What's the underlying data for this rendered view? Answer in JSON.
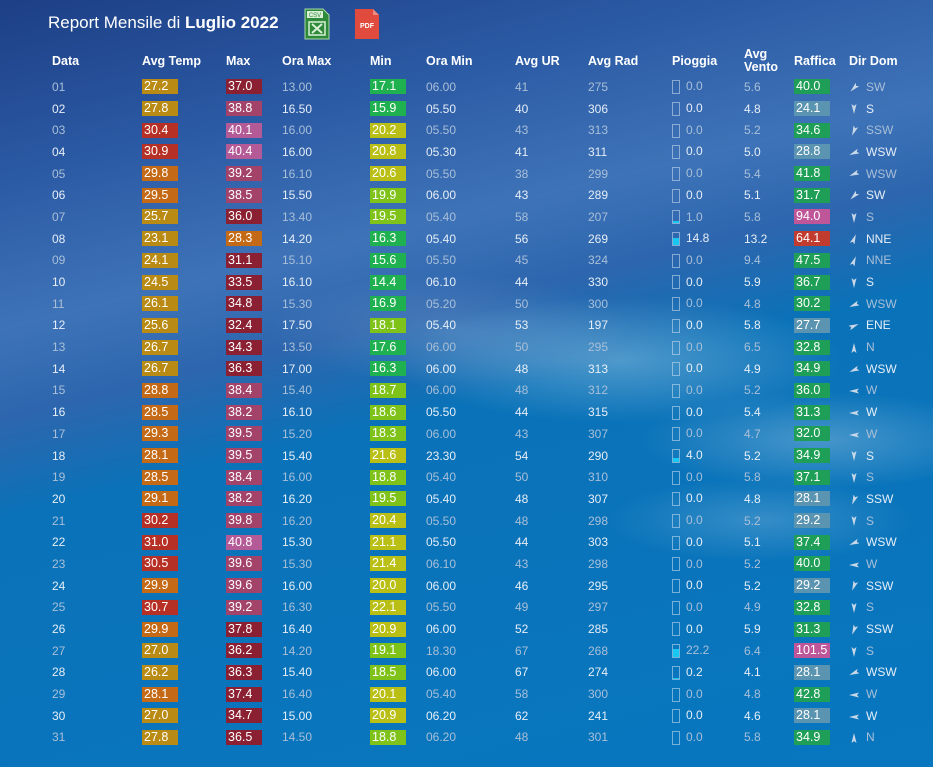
{
  "title": {
    "prefix": "Report Mensile di",
    "month": "Luglio 2022"
  },
  "buttons": {
    "csv": "CSV",
    "pdf": "PDF"
  },
  "headers": {
    "data": "Data",
    "avg_temp": "Avg Temp",
    "max": "Max",
    "ora_max": "Ora Max",
    "min": "Min",
    "ora_min": "Ora Min",
    "avg_ur": "Avg UR",
    "avg_rad": "Avg Rad",
    "pioggia": "Pioggia",
    "avg_vento_1": "Avg",
    "avg_vento_2": "Vento",
    "raffica": "Raffica",
    "dir_dom": "Dir Dom"
  },
  "colors": {
    "temp_gold": "#b98a14",
    "temp_orange": "#c46a16",
    "temp_red": "#b63025",
    "max_dark": "#8b2032",
    "max_mauve": "#a3436a",
    "max_pink": "#b45a96",
    "min_green": "#1fb150",
    "min_lime": "#7fc219",
    "min_yellow": "#b9bf15",
    "gust_green": "#1e9e56",
    "gust_teal": "#5a94b0",
    "gust_pink": "#c0569a",
    "gust_red": "#c23b2f",
    "rain_fill": "#18c8f0"
  },
  "rows": [
    {
      "d": "01",
      "avg": "27.2",
      "max": "37.0",
      "omax": "13.00",
      "min": "17.1",
      "omin": "06.00",
      "ur": "41",
      "rad": "275",
      "rain": "0.0",
      "rainfrac": 0,
      "vento": "5.6",
      "raf": "40.0",
      "dir": "SW",
      "deg": 225,
      "avgc": "temp_gold",
      "maxc": "max_dark",
      "minc": "min_green",
      "rafc": "gust_green",
      "tone": "dim"
    },
    {
      "d": "02",
      "avg": "27.8",
      "max": "38.8",
      "omax": "16.50",
      "min": "15.9",
      "omin": "05.50",
      "ur": "40",
      "rad": "306",
      "rain": "0.0",
      "rainfrac": 0,
      "vento": "4.8",
      "raf": "24.1",
      "dir": "S",
      "deg": 180,
      "avgc": "temp_gold",
      "maxc": "max_mauve",
      "minc": "min_green",
      "rafc": "gust_teal",
      "tone": "bright"
    },
    {
      "d": "03",
      "avg": "30.4",
      "max": "40.1",
      "omax": "16.00",
      "min": "20.2",
      "omin": "05.50",
      "ur": "43",
      "rad": "313",
      "rain": "0.0",
      "rainfrac": 0,
      "vento": "5.2",
      "raf": "34.6",
      "dir": "SSW",
      "deg": 202,
      "avgc": "temp_red",
      "maxc": "max_pink",
      "minc": "min_yellow",
      "rafc": "gust_green",
      "tone": "dim"
    },
    {
      "d": "04",
      "avg": "30.9",
      "max": "40.4",
      "omax": "16.00",
      "min": "20.8",
      "omin": "05.30",
      "ur": "41",
      "rad": "311",
      "rain": "0.0",
      "rainfrac": 0,
      "vento": "5.0",
      "raf": "28.8",
      "dir": "WSW",
      "deg": 247,
      "avgc": "temp_red",
      "maxc": "max_pink",
      "minc": "min_yellow",
      "rafc": "gust_teal",
      "tone": "bright"
    },
    {
      "d": "05",
      "avg": "29.8",
      "max": "39.2",
      "omax": "16.10",
      "min": "20.6",
      "omin": "05.50",
      "ur": "38",
      "rad": "299",
      "rain": "0.0",
      "rainfrac": 0,
      "vento": "5.4",
      "raf": "41.8",
      "dir": "WSW",
      "deg": 247,
      "avgc": "temp_orange",
      "maxc": "max_mauve",
      "minc": "min_yellow",
      "rafc": "gust_green",
      "tone": "dim"
    },
    {
      "d": "06",
      "avg": "29.5",
      "max": "38.5",
      "omax": "15.50",
      "min": "19.9",
      "omin": "06.00",
      "ur": "43",
      "rad": "289",
      "rain": "0.0",
      "rainfrac": 0,
      "vento": "5.1",
      "raf": "31.7",
      "dir": "SW",
      "deg": 225,
      "avgc": "temp_orange",
      "maxc": "max_mauve",
      "minc": "min_lime",
      "rafc": "gust_green",
      "tone": "bright"
    },
    {
      "d": "07",
      "avg": "25.7",
      "max": "36.0",
      "omax": "13.40",
      "min": "19.5",
      "omin": "05.40",
      "ur": "58",
      "rad": "207",
      "rain": "1.0",
      "rainfrac": 0.2,
      "vento": "5.8",
      "raf": "94.0",
      "dir": "S",
      "deg": 180,
      "avgc": "temp_gold",
      "maxc": "max_dark",
      "minc": "min_lime",
      "rafc": "gust_pink",
      "tone": "dim"
    },
    {
      "d": "08",
      "avg": "23.1",
      "max": "28.3",
      "omax": "14.20",
      "min": "16.3",
      "omin": "05.40",
      "ur": "56",
      "rad": "269",
      "rain": "14.8",
      "rainfrac": 0.55,
      "vento": "13.2",
      "raf": "64.1",
      "dir": "NNE",
      "deg": 22,
      "avgc": "temp_gold",
      "maxc": "temp_orange",
      "minc": "min_green",
      "rafc": "gust_red",
      "tone": "bright"
    },
    {
      "d": "09",
      "avg": "24.1",
      "max": "31.1",
      "omax": "15.10",
      "min": "15.6",
      "omin": "05.50",
      "ur": "45",
      "rad": "324",
      "rain": "0.0",
      "rainfrac": 0,
      "vento": "9.4",
      "raf": "47.5",
      "dir": "NNE",
      "deg": 22,
      "avgc": "temp_gold",
      "maxc": "max_dark",
      "minc": "min_green",
      "rafc": "gust_green",
      "tone": "dim"
    },
    {
      "d": "10",
      "avg": "24.5",
      "max": "33.5",
      "omax": "16.10",
      "min": "14.4",
      "omin": "06.10",
      "ur": "44",
      "rad": "330",
      "rain": "0.0",
      "rainfrac": 0,
      "vento": "5.9",
      "raf": "36.7",
      "dir": "S",
      "deg": 180,
      "avgc": "temp_gold",
      "maxc": "max_dark",
      "minc": "min_green",
      "rafc": "gust_green",
      "tone": "bright"
    },
    {
      "d": "11",
      "avg": "26.1",
      "max": "34.8",
      "omax": "15.30",
      "min": "16.9",
      "omin": "05.20",
      "ur": "50",
      "rad": "300",
      "rain": "0.0",
      "rainfrac": 0,
      "vento": "4.8",
      "raf": "30.2",
      "dir": "WSW",
      "deg": 247,
      "avgc": "temp_gold",
      "maxc": "max_dark",
      "minc": "min_green",
      "rafc": "gust_green",
      "tone": "dim"
    },
    {
      "d": "12",
      "avg": "25.6",
      "max": "32.4",
      "omax": "17.50",
      "min": "18.1",
      "omin": "05.40",
      "ur": "53",
      "rad": "197",
      "rain": "0.0",
      "rainfrac": 0,
      "vento": "5.8",
      "raf": "27.7",
      "dir": "ENE",
      "deg": 67,
      "avgc": "temp_gold",
      "maxc": "max_dark",
      "minc": "min_lime",
      "rafc": "gust_teal",
      "tone": "bright"
    },
    {
      "d": "13",
      "avg": "26.7",
      "max": "34.3",
      "omax": "13.50",
      "min": "17.6",
      "omin": "06.00",
      "ur": "50",
      "rad": "295",
      "rain": "0.0",
      "rainfrac": 0,
      "vento": "6.5",
      "raf": "32.8",
      "dir": "N",
      "deg": 0,
      "avgc": "temp_gold",
      "maxc": "max_dark",
      "minc": "min_green",
      "rafc": "gust_green",
      "tone": "dim"
    },
    {
      "d": "14",
      "avg": "26.7",
      "max": "36.3",
      "omax": "17.00",
      "min": "16.3",
      "omin": "06.00",
      "ur": "48",
      "rad": "313",
      "rain": "0.0",
      "rainfrac": 0,
      "vento": "4.9",
      "raf": "34.9",
      "dir": "WSW",
      "deg": 247,
      "avgc": "temp_gold",
      "maxc": "max_dark",
      "minc": "min_green",
      "rafc": "gust_green",
      "tone": "bright"
    },
    {
      "d": "15",
      "avg": "28.8",
      "max": "38.4",
      "omax": "15.40",
      "min": "18.7",
      "omin": "06.00",
      "ur": "48",
      "rad": "312",
      "rain": "0.0",
      "rainfrac": 0,
      "vento": "5.2",
      "raf": "36.0",
      "dir": "W",
      "deg": 270,
      "avgc": "temp_orange",
      "maxc": "max_mauve",
      "minc": "min_lime",
      "rafc": "gust_green",
      "tone": "dim"
    },
    {
      "d": "16",
      "avg": "28.5",
      "max": "38.2",
      "omax": "16.10",
      "min": "18.6",
      "omin": "05.50",
      "ur": "44",
      "rad": "315",
      "rain": "0.0",
      "rainfrac": 0,
      "vento": "5.4",
      "raf": "31.3",
      "dir": "W",
      "deg": 270,
      "avgc": "temp_orange",
      "maxc": "max_mauve",
      "minc": "min_lime",
      "rafc": "gust_green",
      "tone": "bright"
    },
    {
      "d": "17",
      "avg": "29.3",
      "max": "39.5",
      "omax": "15.20",
      "min": "18.3",
      "omin": "06.00",
      "ur": "43",
      "rad": "307",
      "rain": "0.0",
      "rainfrac": 0,
      "vento": "4.7",
      "raf": "32.0",
      "dir": "W",
      "deg": 270,
      "avgc": "temp_orange",
      "maxc": "max_mauve",
      "minc": "min_lime",
      "rafc": "gust_green",
      "tone": "dim"
    },
    {
      "d": "18",
      "avg": "28.1",
      "max": "39.5",
      "omax": "15.40",
      "min": "21.6",
      "omin": "23.30",
      "ur": "54",
      "rad": "290",
      "rain": "4.0",
      "rainfrac": 0.3,
      "vento": "5.2",
      "raf": "34.9",
      "dir": "S",
      "deg": 180,
      "avgc": "temp_orange",
      "maxc": "max_mauve",
      "minc": "min_yellow",
      "rafc": "gust_green",
      "tone": "bright"
    },
    {
      "d": "19",
      "avg": "28.5",
      "max": "38.4",
      "omax": "16.00",
      "min": "18.8",
      "omin": "05.40",
      "ur": "50",
      "rad": "310",
      "rain": "0.0",
      "rainfrac": 0,
      "vento": "5.8",
      "raf": "37.1",
      "dir": "S",
      "deg": 180,
      "avgc": "temp_orange",
      "maxc": "max_mauve",
      "minc": "min_lime",
      "rafc": "gust_green",
      "tone": "dim"
    },
    {
      "d": "20",
      "avg": "29.1",
      "max": "38.2",
      "omax": "16.20",
      "min": "19.5",
      "omin": "05.40",
      "ur": "48",
      "rad": "307",
      "rain": "0.0",
      "rainfrac": 0,
      "vento": "4.8",
      "raf": "28.1",
      "dir": "SSW",
      "deg": 202,
      "avgc": "temp_orange",
      "maxc": "max_mauve",
      "minc": "min_lime",
      "rafc": "gust_teal",
      "tone": "bright"
    },
    {
      "d": "21",
      "avg": "30.2",
      "max": "39.8",
      "omax": "16.20",
      "min": "20.4",
      "omin": "05.50",
      "ur": "48",
      "rad": "298",
      "rain": "0.0",
      "rainfrac": 0,
      "vento": "5.2",
      "raf": "29.2",
      "dir": "S",
      "deg": 180,
      "avgc": "temp_red",
      "maxc": "max_mauve",
      "minc": "min_yellow",
      "rafc": "gust_teal",
      "tone": "dim"
    },
    {
      "d": "22",
      "avg": "31.0",
      "max": "40.8",
      "omax": "15.30",
      "min": "21.1",
      "omin": "05.50",
      "ur": "44",
      "rad": "303",
      "rain": "0.0",
      "rainfrac": 0,
      "vento": "5.1",
      "raf": "37.4",
      "dir": "WSW",
      "deg": 247,
      "avgc": "temp_red",
      "maxc": "max_pink",
      "minc": "min_yellow",
      "rafc": "gust_green",
      "tone": "bright"
    },
    {
      "d": "23",
      "avg": "30.5",
      "max": "39.6",
      "omax": "15.30",
      "min": "21.4",
      "omin": "06.10",
      "ur": "43",
      "rad": "298",
      "rain": "0.0",
      "rainfrac": 0,
      "vento": "5.2",
      "raf": "40.0",
      "dir": "W",
      "deg": 270,
      "avgc": "temp_red",
      "maxc": "max_mauve",
      "minc": "min_yellow",
      "rafc": "gust_green",
      "tone": "dim"
    },
    {
      "d": "24",
      "avg": "29.9",
      "max": "39.6",
      "omax": "16.00",
      "min": "20.0",
      "omin": "06.00",
      "ur": "46",
      "rad": "295",
      "rain": "0.0",
      "rainfrac": 0,
      "vento": "5.2",
      "raf": "29.2",
      "dir": "SSW",
      "deg": 202,
      "avgc": "temp_orange",
      "maxc": "max_mauve",
      "minc": "min_yellow",
      "rafc": "gust_teal",
      "tone": "bright"
    },
    {
      "d": "25",
      "avg": "30.7",
      "max": "39.2",
      "omax": "16.30",
      "min": "22.1",
      "omin": "05.50",
      "ur": "49",
      "rad": "297",
      "rain": "0.0",
      "rainfrac": 0,
      "vento": "4.9",
      "raf": "32.8",
      "dir": "S",
      "deg": 180,
      "avgc": "temp_red",
      "maxc": "max_mauve",
      "minc": "min_yellow",
      "rafc": "gust_green",
      "tone": "dim"
    },
    {
      "d": "26",
      "avg": "29.9",
      "max": "37.8",
      "omax": "16.40",
      "min": "20.9",
      "omin": "06.00",
      "ur": "52",
      "rad": "285",
      "rain": "0.0",
      "rainfrac": 0,
      "vento": "5.9",
      "raf": "31.3",
      "dir": "SSW",
      "deg": 202,
      "avgc": "temp_orange",
      "maxc": "max_dark",
      "minc": "min_yellow",
      "rafc": "gust_green",
      "tone": "bright"
    },
    {
      "d": "27",
      "avg": "27.0",
      "max": "36.2",
      "omax": "14.20",
      "min": "19.1",
      "omin": "18.30",
      "ur": "67",
      "rad": "268",
      "rain": "22.2",
      "rainfrac": 0.7,
      "vento": "6.4",
      "raf": "101.5",
      "dir": "S",
      "deg": 180,
      "avgc": "temp_gold",
      "maxc": "max_dark",
      "minc": "min_lime",
      "rafc": "gust_pink",
      "tone": "dim"
    },
    {
      "d": "28",
      "avg": "26.2",
      "max": "36.3",
      "omax": "15.40",
      "min": "18.5",
      "omin": "06.00",
      "ur": "67",
      "rad": "274",
      "rain": "0.2",
      "rainfrac": 0.1,
      "vento": "4.1",
      "raf": "28.1",
      "dir": "WSW",
      "deg": 247,
      "avgc": "temp_gold",
      "maxc": "max_dark",
      "minc": "min_lime",
      "rafc": "gust_teal",
      "tone": "bright"
    },
    {
      "d": "29",
      "avg": "28.1",
      "max": "37.4",
      "omax": "16.40",
      "min": "20.1",
      "omin": "05.40",
      "ur": "58",
      "rad": "300",
      "rain": "0.0",
      "rainfrac": 0,
      "vento": "4.8",
      "raf": "42.8",
      "dir": "W",
      "deg": 270,
      "avgc": "temp_orange",
      "maxc": "max_dark",
      "minc": "min_yellow",
      "rafc": "gust_green",
      "tone": "dim"
    },
    {
      "d": "30",
      "avg": "27.0",
      "max": "34.7",
      "omax": "15.00",
      "min": "20.9",
      "omin": "06.20",
      "ur": "62",
      "rad": "241",
      "rain": "0.0",
      "rainfrac": 0,
      "vento": "4.6",
      "raf": "28.1",
      "dir": "W",
      "deg": 270,
      "avgc": "temp_gold",
      "maxc": "max_dark",
      "minc": "min_yellow",
      "rafc": "gust_teal",
      "tone": "bright"
    },
    {
      "d": "31",
      "avg": "27.8",
      "max": "36.5",
      "omax": "14.50",
      "min": "18.8",
      "omin": "06.20",
      "ur": "48",
      "rad": "301",
      "rain": "0.0",
      "rainfrac": 0,
      "vento": "5.8",
      "raf": "34.9",
      "dir": "N",
      "deg": 0,
      "avgc": "temp_gold",
      "maxc": "max_dark",
      "minc": "min_lime",
      "rafc": "gust_green",
      "tone": "dim"
    }
  ]
}
